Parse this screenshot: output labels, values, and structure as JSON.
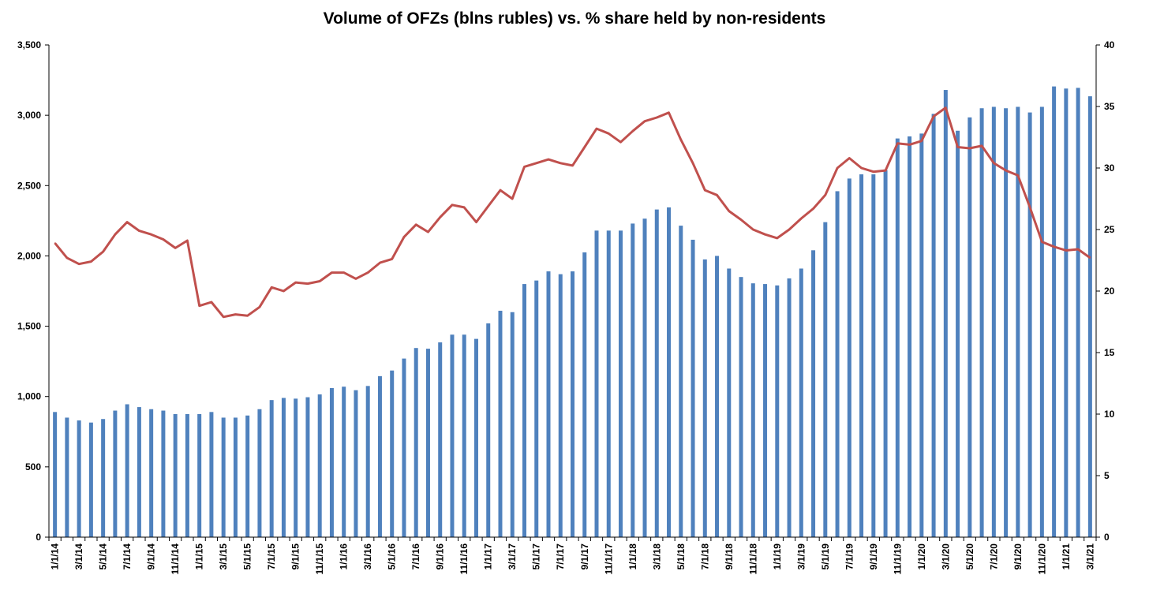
{
  "chart_data": {
    "type": "bar+line",
    "title": "Volume of OFZs (blns rubles) vs. % share held by non-residents",
    "xlabel": "",
    "ylabel_left": "",
    "ylabel_right": "",
    "ylim_left": [
      0,
      3500
    ],
    "yticks_left": [
      "0",
      "500",
      "1,000",
      "1,500",
      "2,000",
      "2,500",
      "3,000",
      "3,500"
    ],
    "ylim_right": [
      0,
      40
    ],
    "yticks_right": [
      "0",
      "5",
      "10",
      "15",
      "20",
      "25",
      "30",
      "35",
      "40"
    ],
    "grid": false,
    "legend": "none",
    "x": [
      "1/1/14",
      "2/1/14",
      "3/1/14",
      "4/1/14",
      "5/1/14",
      "6/1/14",
      "7/1/14",
      "8/1/14",
      "9/1/14",
      "10/1/14",
      "11/1/14",
      "12/1/14",
      "1/1/15",
      "2/1/15",
      "3/1/15",
      "4/1/15",
      "5/1/15",
      "6/1/15",
      "7/1/15",
      "8/1/15",
      "9/1/15",
      "10/1/15",
      "11/1/15",
      "12/1/15",
      "1/1/16",
      "2/1/16",
      "3/1/16",
      "4/1/16",
      "5/1/16",
      "6/1/16",
      "7/1/16",
      "8/1/16",
      "9/1/16",
      "10/1/16",
      "11/1/16",
      "12/1/16",
      "1/1/17",
      "2/1/17",
      "3/1/17",
      "4/1/17",
      "5/1/17",
      "6/1/17",
      "7/1/17",
      "8/1/17",
      "9/1/17",
      "10/1/17",
      "11/1/17",
      "12/1/17",
      "1/1/18",
      "2/1/18",
      "3/1/18",
      "4/1/18",
      "5/1/18",
      "6/1/18",
      "7/1/18",
      "8/1/18",
      "9/1/18",
      "10/1/18",
      "11/1/18",
      "12/1/18",
      "1/1/19",
      "2/1/19",
      "3/1/19",
      "4/1/19",
      "5/1/19",
      "6/1/19",
      "7/1/19",
      "8/1/19",
      "9/1/19",
      "10/1/19",
      "11/1/19",
      "12/1/19",
      "1/1/20",
      "2/1/20",
      "3/1/20",
      "4/1/20",
      "5/1/20",
      "6/1/20",
      "7/1/20",
      "8/1/20",
      "9/1/20",
      "10/1/20",
      "11/1/20",
      "12/1/20",
      "1/1/21",
      "2/1/21",
      "3/1/21"
    ],
    "x_tick_labels": [
      "1/1/14",
      "3/1/14",
      "5/1/14",
      "7/1/14",
      "9/1/14",
      "11/1/14",
      "1/1/15",
      "3/1/15",
      "5/1/15",
      "7/1/15",
      "9/1/15",
      "11/1/15",
      "1/1/16",
      "3/1/16",
      "5/1/16",
      "7/1/16",
      "9/1/16",
      "11/1/16",
      "1/1/17",
      "3/1/17",
      "5/1/17",
      "7/1/17",
      "9/1/17",
      "11/1/17",
      "1/1/18",
      "3/1/18",
      "5/1/18",
      "7/1/18",
      "9/1/18",
      "11/1/18",
      "1/1/19",
      "3/1/19",
      "5/1/19",
      "7/1/19",
      "9/1/19",
      "11/1/19",
      "1/1/20",
      "3/1/20",
      "5/1/20",
      "7/1/20",
      "9/1/20",
      "11/1/20",
      "1/1/21",
      "3/1/21"
    ],
    "series": [
      {
        "type": "bar",
        "axis": "left",
        "color": "#4F81BD",
        "values": [
          890,
          850,
          830,
          815,
          840,
          900,
          945,
          925,
          910,
          900,
          875,
          875,
          875,
          890,
          850,
          850,
          865,
          910,
          975,
          990,
          985,
          995,
          1015,
          1060,
          1070,
          1045,
          1075,
          1145,
          1185,
          1270,
          1345,
          1340,
          1385,
          1440,
          1440,
          1410,
          1520,
          1610,
          1600,
          1800,
          1825,
          1890,
          1870,
          1890,
          2025,
          2180,
          2180,
          2180,
          2230,
          2265,
          2330,
          2345,
          2215,
          2115,
          1975,
          2000,
          1910,
          1850,
          1805,
          1800,
          1790,
          1840,
          1910,
          2040,
          2240,
          2460,
          2550,
          2580,
          2580,
          2610,
          2835,
          2850,
          2870,
          3010,
          3180,
          2890,
          2985,
          3050,
          3060,
          3050,
          3060,
          3020,
          3060,
          3205,
          3190,
          3195,
          3135
        ]
      },
      {
        "type": "line",
        "axis": "right",
        "color": "#C0504D",
        "values": [
          23.9,
          22.7,
          22.2,
          22.4,
          23.2,
          24.6,
          25.6,
          24.9,
          24.6,
          24.2,
          23.5,
          24.1,
          18.8,
          19.1,
          17.9,
          18.1,
          18.0,
          18.7,
          20.3,
          20.0,
          20.7,
          20.6,
          20.8,
          21.5,
          21.5,
          21.0,
          21.5,
          22.3,
          22.6,
          24.4,
          25.4,
          24.8,
          26.0,
          27.0,
          26.8,
          25.6,
          26.9,
          28.2,
          27.5,
          30.1,
          30.4,
          30.7,
          30.4,
          30.2,
          31.7,
          33.2,
          32.8,
          32.1,
          33.0,
          33.8,
          34.1,
          34.5,
          32.3,
          30.4,
          28.2,
          27.8,
          26.5,
          25.8,
          25.0,
          24.6,
          24.3,
          25.0,
          25.9,
          26.7,
          27.8,
          30.0,
          30.8,
          30.0,
          29.7,
          29.8,
          32.0,
          31.9,
          32.2,
          34.2,
          34.9,
          31.7,
          31.6,
          31.8,
          30.4,
          29.8,
          29.4,
          26.8,
          24.0,
          23.6,
          23.3,
          23.4,
          22.7
        ]
      }
    ]
  }
}
